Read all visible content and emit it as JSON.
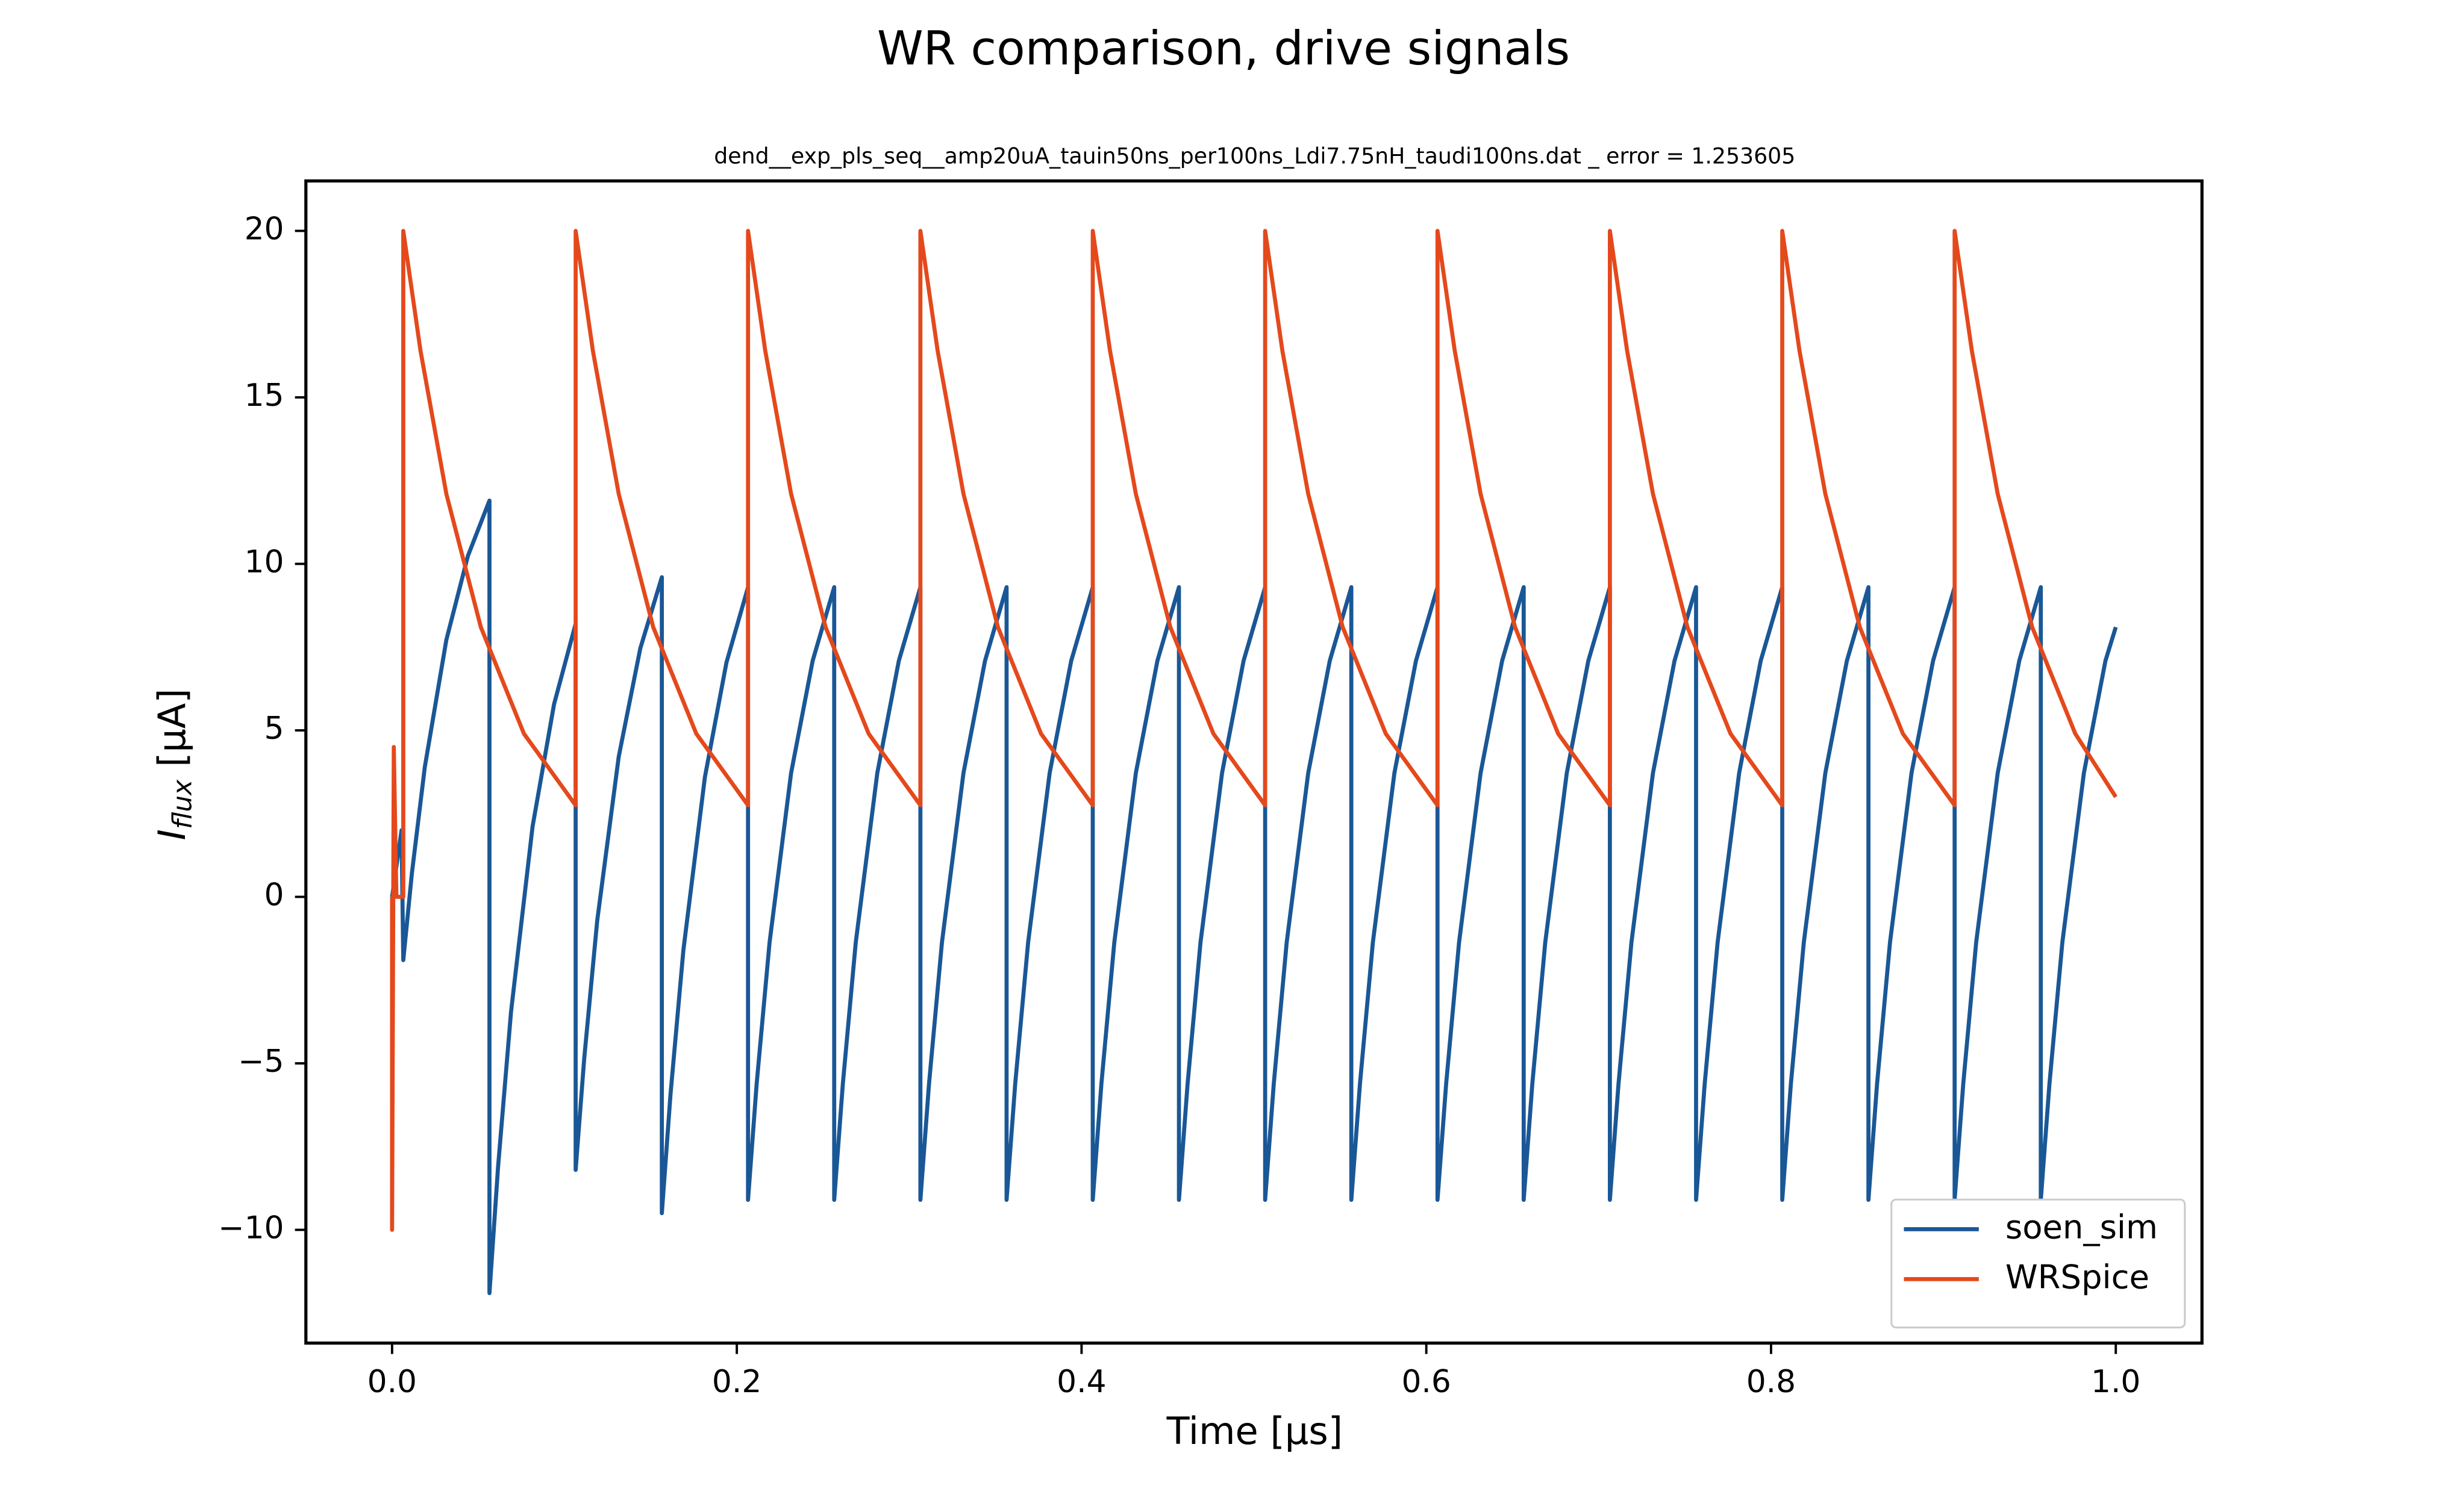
{
  "chart_data": {
    "type": "line",
    "title": "WR comparison, drive signals",
    "subtitle": "dend__exp_pls_seq__amp20uA_tauin50ns_per100ns_Ldi7.75nH_taudi100ns.dat _ error = 1.253605",
    "xlabel": "Time [μs]",
    "ylabel": {
      "symbol": "I",
      "subscript": "flux",
      "unit": "[μA]"
    },
    "xlim": [
      -0.05,
      1.05
    ],
    "ylim": [
      -13.4,
      21.5
    ],
    "xticks": [
      {
        "value": 0,
        "label": "0.0"
      },
      0.2,
      0.4,
      0.6,
      0.8,
      {
        "value": 1,
        "label": "1.0"
      }
    ],
    "yticks": [
      {
        "value": -10,
        "label": "−10"
      },
      {
        "value": -5,
        "label": "−5"
      },
      0,
      5,
      10,
      15,
      20
    ],
    "grid": false,
    "legend": "lower right",
    "series": [
      {
        "name": "soen_sim",
        "color": "#1a5796",
        "x": [
          0,
          0.0055,
          0.0065,
          0.0115,
          0.019,
          0.0315,
          0.044,
          0.0565,
          0.0565,
          0.0615,
          0.069,
          0.0815,
          0.094,
          0.1065,
          0.1065,
          0.1115,
          0.119,
          0.1315,
          0.144,
          0.1565,
          0.1565,
          0.1615,
          0.169,
          0.1815,
          0.194,
          0.2065,
          0.2065,
          0.2115,
          0.219,
          0.2315,
          0.244,
          0.2565,
          0.2565,
          0.2615,
          0.269,
          0.2815,
          0.294,
          0.3065,
          0.3065,
          0.3115,
          0.319,
          0.3315,
          0.344,
          0.3565,
          0.3565,
          0.3615,
          0.369,
          0.3815,
          0.394,
          0.4065,
          0.4065,
          0.4115,
          0.419,
          0.4315,
          0.444,
          0.4565,
          0.4565,
          0.4615,
          0.469,
          0.4815,
          0.494,
          0.5065,
          0.5065,
          0.5115,
          0.519,
          0.5315,
          0.544,
          0.5565,
          0.5565,
          0.5615,
          0.569,
          0.5815,
          0.594,
          0.6065,
          0.6065,
          0.6115,
          0.619,
          0.6315,
          0.644,
          0.6565,
          0.6565,
          0.6615,
          0.669,
          0.6815,
          0.694,
          0.7065,
          0.7065,
          0.7115,
          0.719,
          0.7315,
          0.744,
          0.7565,
          0.7565,
          0.7615,
          0.769,
          0.7815,
          0.794,
          0.8065,
          0.8065,
          0.8115,
          0.819,
          0.8315,
          0.844,
          0.8565,
          0.8565,
          0.8615,
          0.869,
          0.8815,
          0.894,
          0.9065,
          0.9065,
          0.9115,
          0.919,
          0.9315,
          0.944,
          0.9565,
          0.9565,
          0.9615,
          0.969,
          0.9815,
          0.994,
          1.0
        ],
        "values": [
          0,
          2,
          -1.9,
          0.71,
          3.9,
          7.72,
          10.24,
          11.9,
          -11.9,
          -8.1,
          -3.46,
          2.11,
          5.79,
          8.2,
          -8.2,
          -4.84,
          -0.72,
          4.21,
          7.46,
          9.6,
          -9.5,
          -5.95,
          -1.6,
          3.6,
          7.04,
          9.3,
          -9.1,
          -5.62,
          -1.37,
          3.72,
          7.09,
          9.3,
          -9.1,
          -5.62,
          -1.37,
          3.72,
          7.09,
          9.3,
          -9.1,
          -5.62,
          -1.37,
          3.72,
          7.09,
          9.3,
          -9.1,
          -5.62,
          -1.37,
          3.72,
          7.09,
          9.3,
          -9.1,
          -5.62,
          -1.37,
          3.72,
          7.09,
          9.3,
          -9.1,
          -5.62,
          -1.37,
          3.72,
          7.09,
          9.3,
          -9.1,
          -5.62,
          -1.37,
          3.72,
          7.09,
          9.3,
          -9.1,
          -5.62,
          -1.37,
          3.72,
          7.09,
          9.3,
          -9.1,
          -5.62,
          -1.37,
          3.72,
          7.09,
          9.3,
          -9.1,
          -5.62,
          -1.37,
          3.72,
          7.09,
          9.3,
          -9.1,
          -5.62,
          -1.37,
          3.72,
          7.09,
          9.3,
          -9.1,
          -5.62,
          -1.37,
          3.72,
          7.09,
          9.3,
          -9.1,
          -5.62,
          -1.37,
          3.72,
          7.09,
          9.3,
          -9.1,
          -5.62,
          -1.37,
          3.72,
          7.09,
          9.3,
          -9.1,
          -5.62,
          -1.37,
          3.72,
          7.09,
          9.3,
          -9.1,
          -5.62,
          -1.37,
          3.72,
          7.09,
          8.1
        ]
      },
      {
        "name": "WRSpice",
        "color": "#e4491c",
        "x": [
          0,
          0,
          0.001,
          0.0025,
          0.0065,
          0.0065,
          0.0165,
          0.0315,
          0.0515,
          0.0765,
          0.1065,
          0.1065,
          0.1165,
          0.1315,
          0.1515,
          0.1765,
          0.2065,
          0.2065,
          0.2165,
          0.2315,
          0.2515,
          0.2765,
          0.3065,
          0.3065,
          0.3165,
          0.3315,
          0.3515,
          0.3765,
          0.4065,
          0.4065,
          0.4165,
          0.4315,
          0.4515,
          0.4765,
          0.5065,
          0.5065,
          0.5165,
          0.5315,
          0.5515,
          0.5765,
          0.6065,
          0.6065,
          0.6165,
          0.6315,
          0.6515,
          0.6765,
          0.7065,
          0.7065,
          0.7165,
          0.7315,
          0.7515,
          0.7765,
          0.8065,
          0.8065,
          0.8165,
          0.8315,
          0.8515,
          0.8765,
          0.9065,
          0.9065,
          0.9165,
          0.9315,
          0.9515,
          0.9765,
          1.0
        ],
        "values": [
          0,
          -10,
          4.5,
          0,
          0,
          20,
          16.4,
          12.1,
          8.1,
          4.9,
          2.75,
          20,
          16.4,
          12.1,
          8.1,
          4.9,
          2.75,
          20,
          16.4,
          12.1,
          8.1,
          4.9,
          2.75,
          20,
          16.4,
          12.1,
          8.1,
          4.9,
          2.75,
          20,
          16.4,
          12.1,
          8.1,
          4.9,
          2.75,
          20,
          16.4,
          12.1,
          8.1,
          4.9,
          2.75,
          20,
          16.4,
          12.1,
          8.1,
          4.9,
          2.75,
          20,
          16.4,
          12.1,
          8.1,
          4.9,
          2.75,
          20,
          16.4,
          12.1,
          8.1,
          4.9,
          2.75,
          20,
          16.4,
          12.1,
          8.1,
          4.9,
          3.0
        ]
      }
    ]
  }
}
